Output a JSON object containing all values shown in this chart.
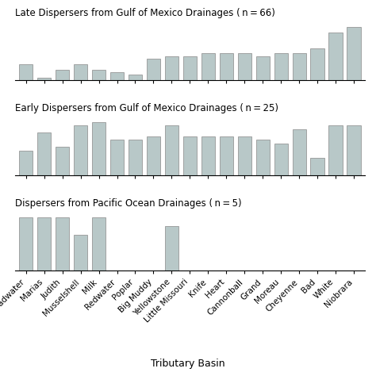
{
  "categories": [
    "Headwater",
    "Marias",
    "Judith",
    "Musselshell",
    "Milk",
    "Redwater",
    "Poplar",
    "Big Muddy",
    "Yellowstone",
    "Little Missouri",
    "Knife",
    "Heart",
    "Cannonball",
    "Grand",
    "Moreau",
    "Cheyenne",
    "Bad",
    "White",
    "Niobrara"
  ],
  "late_values": [
    3,
    0.5,
    2,
    3,
    2,
    1.5,
    1,
    4,
    4.5,
    4.5,
    5,
    5,
    5,
    4.5,
    5,
    5,
    6,
    9,
    10
  ],
  "early_values": [
    3.5,
    6,
    4,
    7,
    7.5,
    5,
    5,
    5.5,
    7,
    5.5,
    5.5,
    5.5,
    5.5,
    5,
    4.5,
    6.5,
    2.5,
    7,
    7
  ],
  "pacific_values": [
    6,
    6,
    6,
    4,
    6,
    0,
    0,
    0,
    5,
    0,
    0,
    0,
    0,
    0,
    0,
    0,
    0,
    0,
    0
  ],
  "late_title": "Late Dispersers from Gulf of Mexico Drainages ( n = 66)",
  "early_title": "Early Dispersers from Gulf of Mexico Drainages ( n = 25)",
  "pacific_title": "Dispersers from Pacific Ocean Drainages ( n = 5)",
  "xlabel": "Tributary Basin",
  "bar_color": "#b8c8c8",
  "edge_color": "#888888",
  "background": "#ffffff",
  "title_fontsize": 8.5,
  "tick_fontsize": 7.5,
  "label_fontsize": 9
}
